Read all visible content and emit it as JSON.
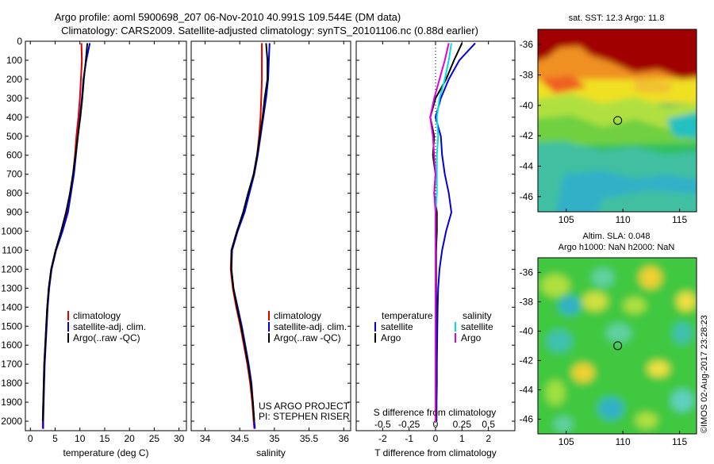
{
  "header": {
    "line1": "Argo profile: aoml 5900698_207 06-Nov-2010 40.991S 109.544E (DM data)",
    "line2": "Climatology: CARS2009. Satellite-adjusted climatology: synTS_20101106.nc (0.88d earlier)"
  },
  "colors": {
    "climatology": "#e00000",
    "satellite": "#0000e0",
    "argo": "#000000",
    "sal_satellite": "#00e0e0",
    "sal_argo": "#e000e0"
  },
  "depth_axis": {
    "ylim": [
      0,
      2050
    ],
    "ticks": [
      0,
      100,
      200,
      300,
      400,
      500,
      600,
      700,
      800,
      900,
      1000,
      1100,
      1200,
      1300,
      1400,
      1500,
      1600,
      1700,
      1800,
      1900,
      2000
    ]
  },
  "chart_data": [
    {
      "type": "line",
      "name": "temperature",
      "xlabel": "temperature (deg C)",
      "xlim": [
        -1,
        31.5
      ],
      "xticks": [
        0,
        5,
        10,
        15,
        20,
        25,
        30
      ],
      "xtick_labels": [
        "0",
        "5",
        "10",
        "15",
        "20",
        "25",
        "30"
      ],
      "legend": [
        "climatology",
        "satellite-adj. clim.",
        "Argo(..raw -QC)"
      ],
      "series": [
        {
          "name": "climatology",
          "color": "climatology",
          "x": [
            10.3,
            10.4,
            10.2,
            10.0,
            9.7,
            9.3,
            9.0,
            8.6,
            8.0,
            7.4,
            6.3,
            5.1,
            4.2,
            3.7,
            3.4,
            3.2,
            3.0,
            2.8,
            2.7,
            2.6,
            2.5,
            2.5
          ],
          "y": [
            10,
            100,
            200,
            300,
            400,
            500,
            600,
            700,
            800,
            900,
            1000,
            1100,
            1200,
            1300,
            1400,
            1500,
            1600,
            1700,
            1800,
            1900,
            2000,
            2040
          ]
        },
        {
          "name": "satellite",
          "color": "satellite",
          "x": [
            12.0,
            11.3,
            10.7,
            10.4,
            10.0,
            9.6,
            9.2,
            8.8,
            8.2,
            7.6,
            6.5,
            5.2,
            4.3,
            3.8,
            3.5,
            3.3,
            3.1,
            2.9,
            2.8,
            2.7,
            2.6,
            2.6
          ],
          "y": [
            10,
            100,
            200,
            300,
            400,
            500,
            600,
            700,
            800,
            900,
            1000,
            1100,
            1200,
            1300,
            1400,
            1500,
            1600,
            1700,
            1800,
            1900,
            2000,
            2040
          ]
        },
        {
          "name": "argo",
          "color": "argo",
          "x": [
            11.5,
            11.2,
            10.8,
            10.5,
            10.1,
            9.6,
            9.1,
            8.6,
            8.0,
            7.2,
            6.2,
            5.1,
            4.2,
            3.7,
            3.4,
            3.2,
            3.0,
            2.8,
            2.7,
            2.6,
            2.5
          ],
          "y": [
            10,
            100,
            200,
            300,
            400,
            500,
            600,
            700,
            800,
            900,
            1000,
            1100,
            1200,
            1300,
            1400,
            1500,
            1600,
            1700,
            1800,
            1900,
            2000
          ]
        }
      ]
    },
    {
      "type": "line",
      "name": "salinity",
      "xlabel": "salinity",
      "xlim": [
        33.8,
        36.1
      ],
      "xticks": [
        34,
        34.5,
        35,
        35.5,
        36
      ],
      "xtick_labels": [
        "34",
        "34.5",
        "35",
        "35.5",
        "36"
      ],
      "legend": [
        "climatology",
        "satellite-adj. clim.",
        "Argo(..raw -QC)"
      ],
      "annotation": [
        "US ARGO PROJECT",
        "PI: STEPHEN RISER"
      ],
      "series": [
        {
          "name": "climatology",
          "color": "climatology",
          "x": [
            34.82,
            34.82,
            34.82,
            34.81,
            34.8,
            34.78,
            34.75,
            34.7,
            34.63,
            34.56,
            34.46,
            34.38,
            34.37,
            34.4,
            34.45,
            34.51,
            34.56,
            34.61,
            34.65,
            34.68,
            34.7,
            34.71
          ],
          "y": [
            10,
            100,
            200,
            300,
            400,
            500,
            600,
            700,
            800,
            900,
            1000,
            1100,
            1200,
            1300,
            1400,
            1500,
            1600,
            1700,
            1800,
            1900,
            2000,
            2040
          ]
        },
        {
          "name": "satellite",
          "color": "satellite",
          "x": [
            34.93,
            34.92,
            34.91,
            34.88,
            34.84,
            34.8,
            34.76,
            34.71,
            34.64,
            34.57,
            34.47,
            34.39,
            34.38,
            34.41,
            34.47,
            34.53,
            34.58,
            34.63,
            34.67,
            34.69,
            34.71,
            34.72
          ],
          "y": [
            10,
            100,
            200,
            300,
            400,
            500,
            600,
            700,
            800,
            900,
            1000,
            1100,
            1200,
            1300,
            1400,
            1500,
            1600,
            1700,
            1800,
            1900,
            2000,
            2040
          ]
        },
        {
          "name": "argo",
          "color": "argo",
          "x": [
            34.88,
            34.9,
            34.9,
            34.86,
            34.83,
            34.79,
            34.75,
            34.7,
            34.62,
            34.55,
            34.46,
            34.38,
            34.38,
            34.41,
            34.46,
            34.52,
            34.57,
            34.62,
            34.66,
            34.69,
            34.71
          ],
          "y": [
            10,
            100,
            200,
            300,
            400,
            500,
            600,
            700,
            800,
            900,
            1000,
            1100,
            1200,
            1300,
            1400,
            1500,
            1600,
            1700,
            1800,
            1900,
            2000
          ]
        }
      ]
    },
    {
      "type": "line",
      "name": "difference",
      "xlabel": "T difference from climatology",
      "top_label": "S difference from climatology",
      "xlim": [
        -3,
        3
      ],
      "xticks": [
        -2,
        -1,
        0,
        1,
        2
      ],
      "xtick_labels": [
        "-2",
        "-1",
        "0",
        "1",
        "2"
      ],
      "top_ticks": [
        -2,
        -1,
        0,
        1,
        2
      ],
      "top_tick_labels": [
        "-0.5",
        "-0.25",
        "0",
        "0.25",
        "0.5"
      ],
      "legend_left_title": "temperature",
      "legend_right_title": "salinity",
      "legend_left": [
        "satellite",
        "Argo"
      ],
      "legend_right": [
        "satellite",
        "Argo"
      ],
      "series": [
        {
          "name": "T satellite",
          "color": "satellite",
          "x": [
            1.5,
            0.9,
            0.5,
            0.2,
            0.0,
            0.2,
            0.25,
            0.35,
            0.5,
            0.6,
            0.4,
            0.25,
            0.15,
            0.1,
            0.08,
            0.07,
            0.06,
            0.05,
            0.05,
            0.04,
            0.04
          ],
          "y": [
            10,
            100,
            200,
            300,
            400,
            500,
            600,
            700,
            800,
            900,
            1000,
            1100,
            1200,
            1300,
            1400,
            1500,
            1600,
            1700,
            1800,
            1900,
            2000
          ]
        },
        {
          "name": "T Argo",
          "color": "argo",
          "x": [
            1.0,
            0.7,
            0.4,
            0.0,
            -0.2,
            -0.05,
            -0.1,
            0.0,
            -0.05,
            0.05,
            0.05,
            0.02,
            0.02,
            0.02,
            0.03,
            0.02,
            0.02,
            0.02,
            0.02,
            0.02,
            0.02
          ],
          "y": [
            10,
            100,
            200,
            300,
            400,
            500,
            600,
            700,
            800,
            900,
            1000,
            1100,
            1200,
            1300,
            1400,
            1500,
            1600,
            1700,
            1800,
            1900,
            2000
          ]
        },
        {
          "name": "S satellite",
          "color": "sal_satellite",
          "x": [
            0.6,
            0.5,
            0.35,
            0.15,
            0.05,
            0.1,
            0.05,
            0.05,
            0.05,
            0.0,
            0.0,
            0.0,
            0.0,
            0.0,
            0.0,
            0.0,
            0.0,
            0.0,
            0.0,
            0.0,
            0.0
          ],
          "y": [
            10,
            100,
            200,
            300,
            400,
            500,
            600,
            700,
            800,
            900,
            1000,
            1100,
            1200,
            1300,
            1400,
            1500,
            1600,
            1700,
            1800,
            1900,
            2000
          ]
        },
        {
          "name": "S Argo",
          "color": "sal_argo",
          "x": [
            0.5,
            0.35,
            0.15,
            -0.05,
            -0.2,
            -0.1,
            -0.05,
            0.0,
            -0.05,
            0.0,
            0.0,
            0.0,
            0.0,
            0.0,
            0.0,
            0.0,
            0.0,
            0.0,
            0.0,
            0.0,
            0.0
          ],
          "y": [
            10,
            100,
            200,
            300,
            400,
            500,
            600,
            700,
            800,
            900,
            1000,
            1100,
            1200,
            1300,
            1400,
            1500,
            1600,
            1700,
            1800,
            1900,
            2000
          ]
        }
      ]
    },
    {
      "type": "heatmap",
      "name": "sst_map",
      "title": "sat. SST: 12.3 Argo: 11.8",
      "xlim": [
        102.5,
        116.5
      ],
      "ylim": [
        -47,
        -35
      ],
      "xticks": [
        105,
        110,
        115
      ],
      "xtick_labels": [
        "105",
        "110",
        "115"
      ],
      "yticks": [
        -36,
        -38,
        -40,
        -42,
        -44,
        -46
      ],
      "ytick_labels": [
        "-36",
        "-38",
        "-40",
        "-42",
        "-44",
        "-46"
      ],
      "marker": {
        "lon": 109.544,
        "lat": -40.991
      }
    },
    {
      "type": "heatmap",
      "name": "sla_map",
      "title_line1": "Altim. SLA: 0.048",
      "title_line2": "Argo h1000: NaN h2000: NaN",
      "xlim": [
        102.5,
        116.5
      ],
      "ylim": [
        -47,
        -35
      ],
      "xticks": [
        105,
        110,
        115
      ],
      "xtick_labels": [
        "105",
        "110",
        "115"
      ],
      "yticks": [
        -36,
        -38,
        -40,
        -42,
        -44,
        -46
      ],
      "ytick_labels": [
        "-36",
        "-38",
        "-40",
        "-42",
        "-44",
        "-46"
      ],
      "marker": {
        "lon": 109.544,
        "lat": -40.991
      }
    }
  ],
  "footer": {
    "credit": "©IMOS 02-Aug-2017 23:28:23"
  }
}
